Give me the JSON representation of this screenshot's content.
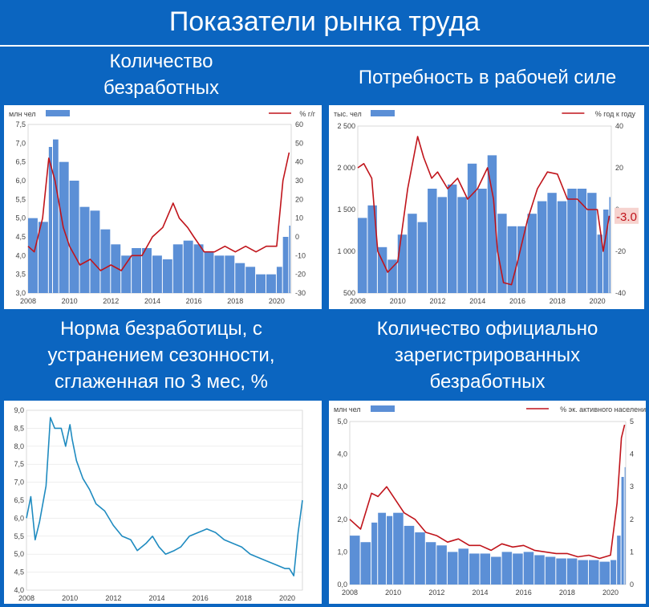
{
  "page": {
    "title": "Показатели рынка труда"
  },
  "colors": {
    "background": "#0b65c0",
    "bars": "#5b8fd6",
    "line_red": "#c0141b",
    "line_blue": "#1f8bc0"
  },
  "chart_data": [
    {
      "id": "unemployed",
      "type": "bar",
      "title_lines": [
        "Количество",
        "безработных"
      ],
      "legend_left": "млн чел",
      "legend_right": "% г/г",
      "xticks": [
        "2008",
        "2010",
        "2012",
        "2014",
        "2016",
        "2018",
        "2020"
      ],
      "x_range": [
        2008,
        2020.7
      ],
      "y_left_ticks": [
        "3,0",
        "3,5",
        "4,0",
        "4,5",
        "5,0",
        "5,5",
        "6,0",
        "6,5",
        "7,0",
        "7,5"
      ],
      "y_left_range": [
        3.0,
        7.5
      ],
      "y_right_ticks": [
        "-30",
        "-20",
        "-10",
        "0",
        "10",
        "20",
        "30",
        "40",
        "50",
        "60"
      ],
      "y_right_range": [
        -30,
        60
      ],
      "bars": {
        "name": "млн чел",
        "x": [
          2008.0,
          2008.5,
          2009.0,
          2009.2,
          2009.5,
          2010.0,
          2010.5,
          2011.0,
          2011.5,
          2012.0,
          2012.5,
          2013.0,
          2013.5,
          2014.0,
          2014.5,
          2015.0,
          2015.5,
          2016.0,
          2016.5,
          2017.0,
          2017.5,
          2018.0,
          2018.5,
          2019.0,
          2019.5,
          2020.0,
          2020.3,
          2020.6
        ],
        "y": [
          5.0,
          4.9,
          6.9,
          7.1,
          6.5,
          6.0,
          5.3,
          5.2,
          4.7,
          4.3,
          4.0,
          4.2,
          4.2,
          4.0,
          3.9,
          4.3,
          4.4,
          4.3,
          4.1,
          4.0,
          4.0,
          3.8,
          3.7,
          3.5,
          3.5,
          3.7,
          4.5,
          4.8
        ]
      },
      "line": {
        "name": "% г/г",
        "x": [
          2008.0,
          2008.3,
          2008.7,
          2009.0,
          2009.3,
          2009.7,
          2010.0,
          2010.5,
          2011.0,
          2011.5,
          2012.0,
          2012.5,
          2013.0,
          2013.5,
          2014.0,
          2014.5,
          2015.0,
          2015.3,
          2015.7,
          2016.0,
          2016.5,
          2017.0,
          2017.5,
          2018.0,
          2018.5,
          2019.0,
          2019.5,
          2020.0,
          2020.3,
          2020.6
        ],
        "y": [
          -5,
          -8,
          10,
          42,
          30,
          5,
          -5,
          -15,
          -12,
          -18,
          -15,
          -18,
          -10,
          -10,
          0,
          5,
          18,
          10,
          5,
          0,
          -8,
          -8,
          -5,
          -8,
          -5,
          -8,
          -5,
          -5,
          30,
          45
        ]
      }
    },
    {
      "id": "labor-demand",
      "type": "bar",
      "title_lines": [
        "Потребность в рабочей силе"
      ],
      "legend_left": "тыс. чел",
      "legend_right": "% год к году",
      "xticks": [
        "2008",
        "2010",
        "2012",
        "2014",
        "2016",
        "2018",
        "2020"
      ],
      "x_range": [
        2008,
        2020.7
      ],
      "y_left_ticks": [
        "500",
        "1 000",
        "1 500",
        "2 000",
        "2 500"
      ],
      "y_left_range": [
        500,
        2500
      ],
      "y_right_ticks": [
        "-40",
        "-20",
        "0",
        "20",
        "40"
      ],
      "y_right_range": [
        -40,
        40
      ],
      "annotation": "-3.0",
      "bars": {
        "name": "тыс. чел",
        "x": [
          2008.0,
          2008.5,
          2009.0,
          2009.5,
          2010.0,
          2010.5,
          2011.0,
          2011.5,
          2012.0,
          2012.5,
          2013.0,
          2013.5,
          2014.0,
          2014.5,
          2015.0,
          2015.5,
          2016.0,
          2016.5,
          2017.0,
          2017.5,
          2018.0,
          2018.5,
          2019.0,
          2019.5,
          2020.0,
          2020.3,
          2020.6
        ],
        "y": [
          1400,
          1550,
          1050,
          900,
          1200,
          1450,
          1350,
          1750,
          1650,
          1800,
          1650,
          2050,
          1750,
          2150,
          1450,
          1300,
          1300,
          1450,
          1600,
          1700,
          1600,
          1750,
          1750,
          1700,
          1200,
          1500,
          1650
        ]
      },
      "line": {
        "name": "% год к году",
        "x": [
          2008.0,
          2008.3,
          2008.7,
          2009.0,
          2009.5,
          2010.0,
          2010.5,
          2011.0,
          2011.3,
          2011.7,
          2012.0,
          2012.5,
          2013.0,
          2013.5,
          2014.0,
          2014.5,
          2014.8,
          2015.0,
          2015.3,
          2015.7,
          2016.0,
          2016.5,
          2017.0,
          2017.5,
          2018.0,
          2018.5,
          2019.0,
          2019.5,
          2020.0,
          2020.3,
          2020.6
        ],
        "y": [
          20,
          22,
          15,
          -20,
          -30,
          -25,
          10,
          35,
          25,
          15,
          18,
          10,
          15,
          5,
          10,
          20,
          5,
          -20,
          -35,
          -36,
          -25,
          -5,
          10,
          18,
          17,
          5,
          5,
          0,
          0,
          -20,
          -3
        ]
      }
    },
    {
      "id": "unemployment-rate",
      "type": "line",
      "title_lines": [
        "Норма безработицы, с",
        "устранением сезонности,",
        "сглаженная по 3 мес, %"
      ],
      "xticks": [
        "2008",
        "2010",
        "2012",
        "2014",
        "2016",
        "2018",
        "2020"
      ],
      "x_range": [
        2008,
        2020.7
      ],
      "y_ticks": [
        "4,0",
        "4,5",
        "5,0",
        "5,5",
        "6,0",
        "6,5",
        "7,0",
        "7,5",
        "8,0",
        "8,5",
        "9,0"
      ],
      "y_range": [
        4.0,
        9.0
      ],
      "line": {
        "x": [
          2008.0,
          2008.2,
          2008.4,
          2008.6,
          2008.9,
          2009.1,
          2009.3,
          2009.6,
          2009.8,
          2010.0,
          2010.1,
          2010.3,
          2010.6,
          2010.9,
          2011.2,
          2011.6,
          2012.0,
          2012.4,
          2012.8,
          2013.1,
          2013.5,
          2013.8,
          2014.1,
          2014.4,
          2014.8,
          2015.1,
          2015.5,
          2015.9,
          2016.3,
          2016.7,
          2017.1,
          2017.5,
          2017.9,
          2018.3,
          2018.7,
          2019.1,
          2019.5,
          2019.9,
          2020.1,
          2020.3,
          2020.5,
          2020.7
        ],
        "y": [
          6.0,
          6.6,
          5.4,
          5.9,
          6.9,
          8.8,
          8.5,
          8.5,
          8.0,
          8.6,
          8.2,
          7.6,
          7.1,
          6.8,
          6.4,
          6.2,
          5.8,
          5.5,
          5.4,
          5.1,
          5.3,
          5.5,
          5.2,
          5.0,
          5.1,
          5.2,
          5.5,
          5.6,
          5.7,
          5.6,
          5.4,
          5.3,
          5.2,
          5.0,
          4.9,
          4.8,
          4.7,
          4.6,
          4.6,
          4.4,
          5.6,
          6.5
        ]
      }
    },
    {
      "id": "registered-unemployed",
      "type": "bar",
      "title_lines": [
        "Количество официально",
        "зарегистрированных",
        "безработных"
      ],
      "legend_left": "млн чел",
      "legend_right": "% эк. активного населения",
      "xticks": [
        "2008",
        "2010",
        "2012",
        "2014",
        "2016",
        "2018",
        "2020"
      ],
      "x_range": [
        2008,
        2020.7
      ],
      "y_left_ticks": [
        "0,0",
        "1,0",
        "2,0",
        "3,0",
        "4,0",
        "5,0"
      ],
      "y_left_range": [
        0,
        5
      ],
      "y_right_ticks": [
        "0",
        "1",
        "2",
        "3",
        "4",
        "5"
      ],
      "y_right_range": [
        0,
        5
      ],
      "bars": {
        "name": "млн чел",
        "x": [
          2008.0,
          2008.5,
          2009.0,
          2009.3,
          2009.7,
          2010.0,
          2010.5,
          2011.0,
          2011.5,
          2012.0,
          2012.5,
          2013.0,
          2013.5,
          2014.0,
          2014.5,
          2015.0,
          2015.5,
          2016.0,
          2016.5,
          2017.0,
          2017.5,
          2018.0,
          2018.5,
          2019.0,
          2019.5,
          2020.0,
          2020.3,
          2020.5,
          2020.65
        ],
        "y": [
          1.5,
          1.3,
          1.9,
          2.2,
          2.1,
          2.2,
          1.8,
          1.6,
          1.3,
          1.2,
          1.0,
          1.1,
          0.95,
          0.95,
          0.85,
          1.0,
          0.95,
          1.0,
          0.9,
          0.85,
          0.8,
          0.8,
          0.75,
          0.75,
          0.7,
          0.75,
          1.5,
          3.3,
          3.6
        ]
      },
      "line": {
        "name": "% эк. активного населения",
        "x": [
          2008.0,
          2008.5,
          2009.0,
          2009.3,
          2009.7,
          2010.0,
          2010.5,
          2011.0,
          2011.5,
          2012.0,
          2012.5,
          2013.0,
          2013.5,
          2014.0,
          2014.5,
          2015.0,
          2015.5,
          2016.0,
          2016.5,
          2017.0,
          2017.5,
          2018.0,
          2018.5,
          2019.0,
          2019.5,
          2020.0,
          2020.3,
          2020.5,
          2020.65
        ],
        "y": [
          2.0,
          1.7,
          2.8,
          2.7,
          3.0,
          2.7,
          2.2,
          2.0,
          1.6,
          1.5,
          1.3,
          1.4,
          1.2,
          1.2,
          1.05,
          1.25,
          1.15,
          1.2,
          1.05,
          1.0,
          0.95,
          0.95,
          0.85,
          0.9,
          0.8,
          0.9,
          2.5,
          4.5,
          4.9
        ]
      }
    }
  ]
}
